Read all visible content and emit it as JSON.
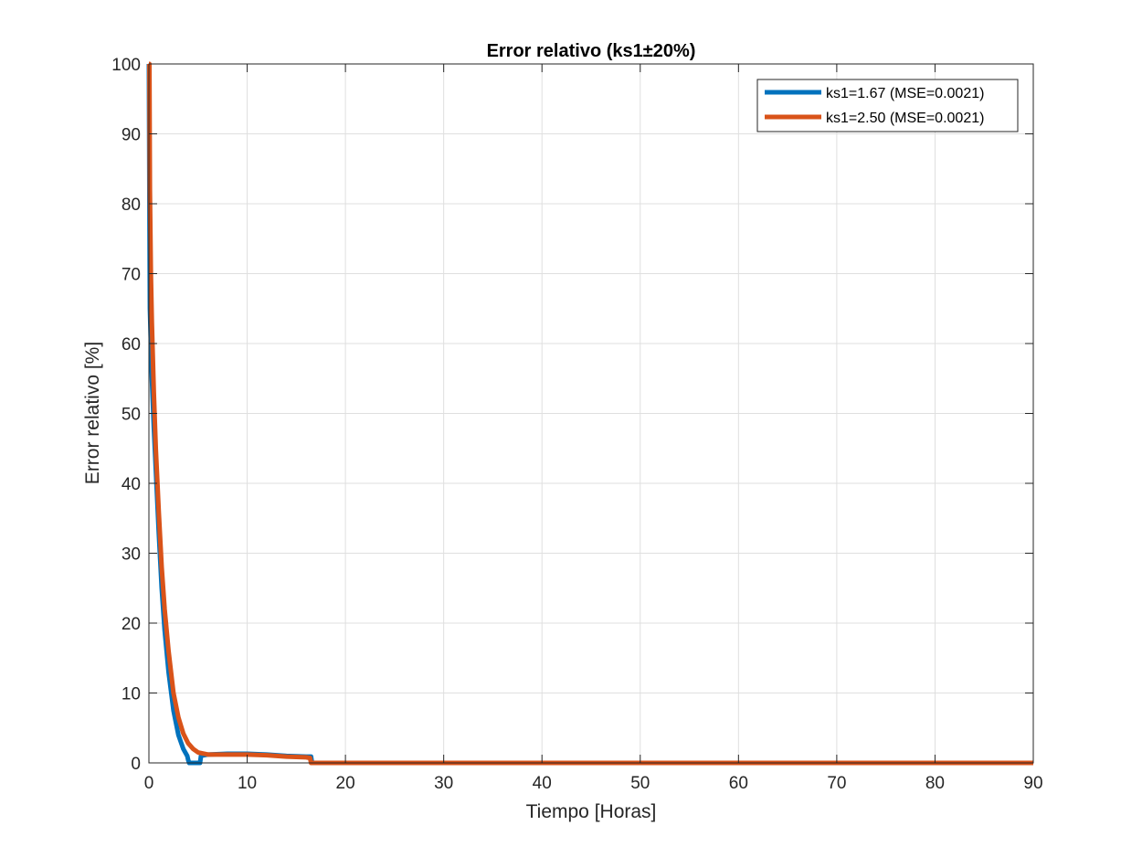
{
  "chart_data": {
    "type": "line",
    "title": "Error relativo (ks1±20%)",
    "xlabel": "Tiempo [Horas]",
    "ylabel": "Error relativo [%]",
    "xlim": [
      0,
      90
    ],
    "ylim": [
      0,
      100
    ],
    "xticks": [
      0,
      10,
      20,
      30,
      40,
      50,
      60,
      70,
      80,
      90
    ],
    "yticks": [
      0,
      10,
      20,
      30,
      40,
      50,
      60,
      70,
      80,
      90,
      100
    ],
    "grid": true,
    "legend_position": "top-right",
    "series": [
      {
        "name": "ks1=1.67 (MSE=0.0021)",
        "color": "#0072BD",
        "x": [
          0,
          0.05,
          0.1,
          0.2,
          0.3,
          0.5,
          0.7,
          1.0,
          1.3,
          1.6,
          2.0,
          2.5,
          3.0,
          3.5,
          3.9,
          4.0,
          4.1,
          5.2,
          5.3,
          6.0,
          8.0,
          10.0,
          12.0,
          14.0,
          16.0,
          16.5,
          16.6,
          90
        ],
        "y": [
          100,
          80,
          65,
          60,
          55,
          48,
          42,
          33,
          25,
          19,
          13,
          7.5,
          4,
          2,
          1,
          0.4,
          0,
          0,
          1,
          1.2,
          1.3,
          1.3,
          1.2,
          1.0,
          0.9,
          0.9,
          0,
          0
        ]
      },
      {
        "name": "ks1=2.50 (MSE=0.0021)",
        "color": "#D95319",
        "x": [
          0,
          0.05,
          0.1,
          0.2,
          0.3,
          0.5,
          0.7,
          1.0,
          1.3,
          1.6,
          2.0,
          2.5,
          3.0,
          3.5,
          4.0,
          4.5,
          5.0,
          6.0,
          8.0,
          10.0,
          12.0,
          14.0,
          16.0,
          16.4,
          16.5,
          90
        ],
        "y": [
          100,
          100,
          82,
          70,
          63,
          53,
          45,
          36,
          28,
          22,
          16,
          10,
          6.5,
          4.2,
          2.8,
          2.0,
          1.5,
          1.2,
          1.2,
          1.2,
          1.1,
          0.9,
          0.8,
          0.7,
          0,
          0
        ]
      }
    ]
  }
}
